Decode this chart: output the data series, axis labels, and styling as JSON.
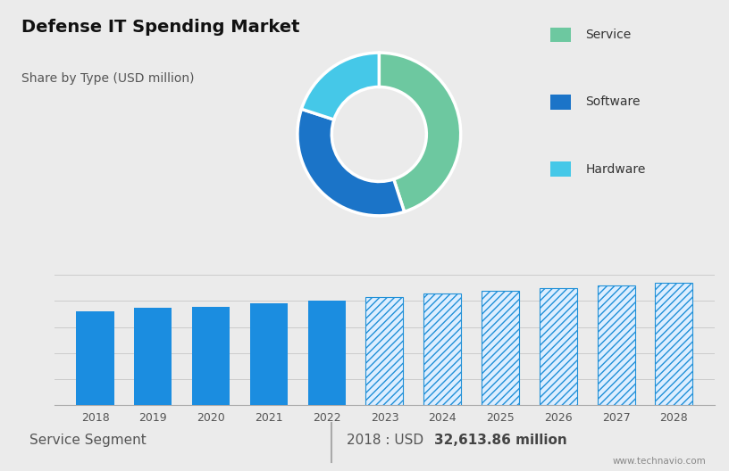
{
  "title": "Defense IT Spending Market",
  "subtitle": "Share by Type (USD million)",
  "donut_values": [
    45,
    35,
    20
  ],
  "donut_colors": [
    "#6dc8a0",
    "#1b74c8",
    "#45c8e8"
  ],
  "donut_labels": [
    "Service",
    "Software",
    "Hardware"
  ],
  "bar_years_solid": [
    2018,
    2019,
    2020,
    2021,
    2022
  ],
  "bar_years_hatched": [
    2023,
    2024,
    2025,
    2026,
    2027,
    2028
  ],
  "bar_heights_solid": [
    72,
    75,
    75.5,
    78,
    80
  ],
  "bar_heights_hatched": [
    83,
    86,
    88,
    90,
    92,
    94
  ],
  "bar_color_solid": "#1b8de0",
  "hatch_pattern": "////",
  "top_bg_color": "#d0d9e6",
  "bottom_bg_color": "#ebebeb",
  "footer_bg_color": "#e4e4e4",
  "footer_left": "Service Segment",
  "footer_sep": "|",
  "footer_year": "2018 : USD ",
  "footer_value": "32,613.86 million",
  "footer_url": "www.technavio.com",
  "legend_labels": [
    "Service",
    "Software",
    "Hardware"
  ],
  "legend_colors": [
    "#6dc8a0",
    "#1b74c8",
    "#45c8e8"
  ]
}
